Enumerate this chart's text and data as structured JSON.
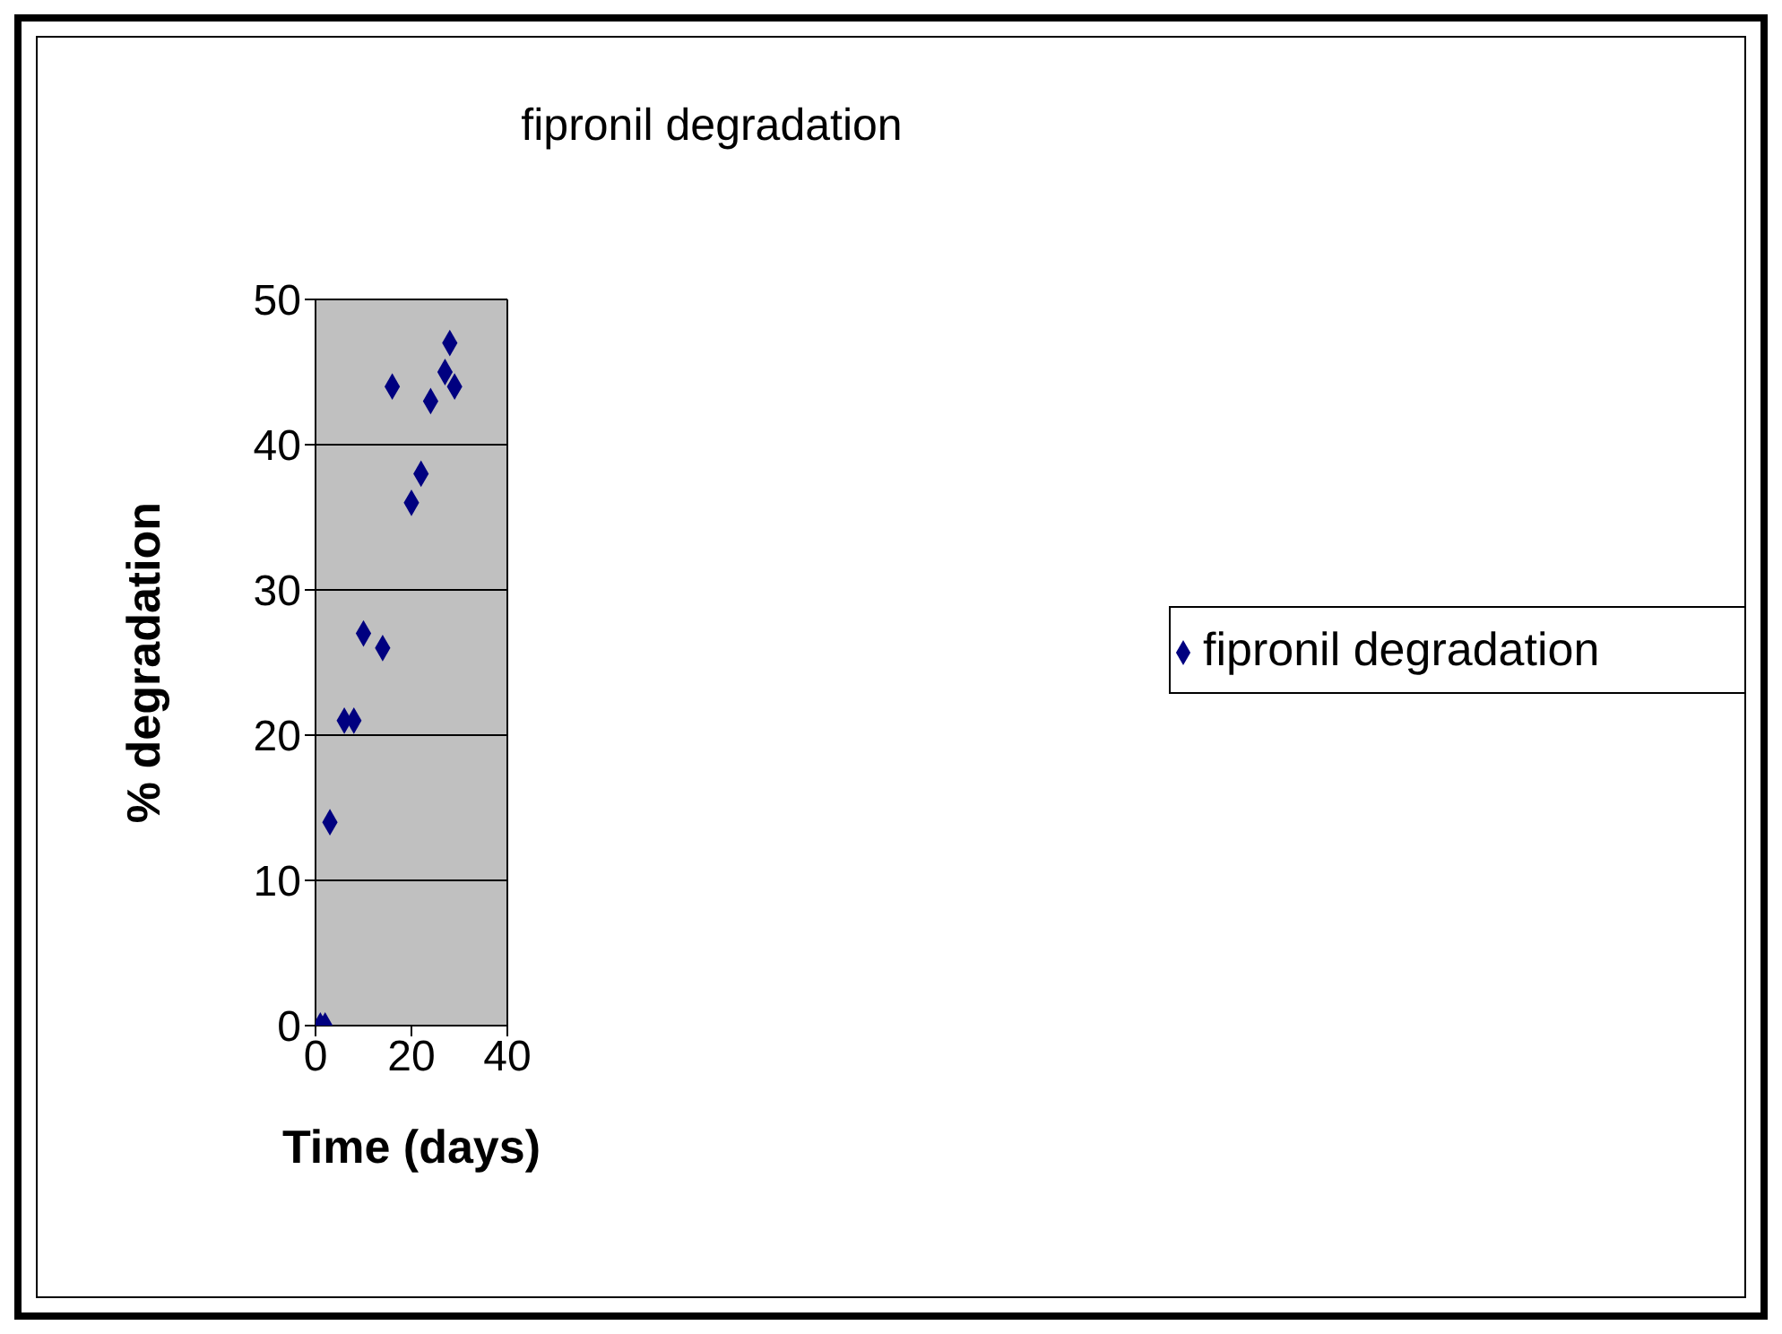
{
  "chart_data": {
    "type": "scatter",
    "title": "fipronil degradation",
    "xlabel": "Time (days)",
    "ylabel": "% degradation",
    "x": [
      1,
      2,
      3,
      6,
      8,
      10,
      14,
      16,
      20,
      22,
      24,
      27,
      28,
      29
    ],
    "series": [
      {
        "name": "fipronil degradation",
        "color": "#000080",
        "values": [
          0,
          0,
          14,
          21,
          21,
          27,
          26,
          44,
          36,
          38,
          43,
          45,
          47,
          44
        ]
      }
    ],
    "xlim": [
      0,
      40
    ],
    "xticks": [
      0,
      20,
      40
    ],
    "ylim": [
      0,
      50
    ],
    "yticks": [
      0,
      10,
      20,
      30,
      40,
      50
    ],
    "grid": "y",
    "legend": "right",
    "marker": "diamond"
  }
}
